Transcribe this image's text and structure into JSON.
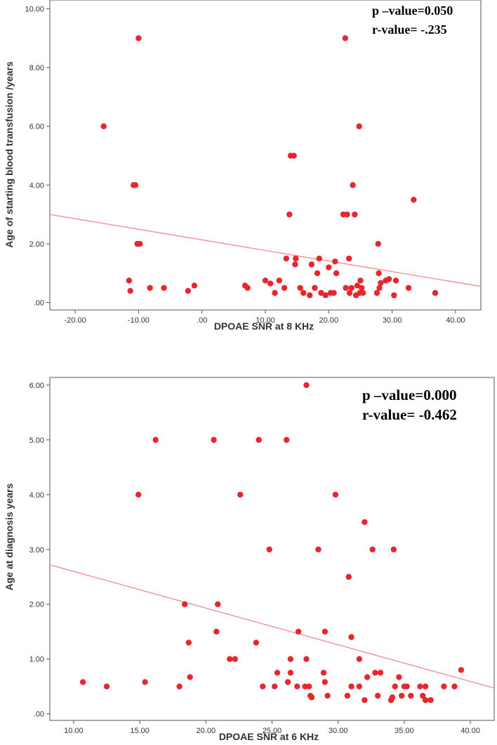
{
  "colors": {
    "point": "#e8262b",
    "fit_line": "#f08a8a",
    "axis": "#555555",
    "background": "#ffffff"
  },
  "chart_data": [
    {
      "type": "scatter",
      "title": "",
      "xlabel": "DPOAE SNR  at 8 KHz",
      "ylabel": "Age of starting blood transfusion /years",
      "xlim": [
        -24,
        44
      ],
      "ylim": [
        -0.25,
        10.3
      ],
      "xticks": [
        -20,
        -10,
        0,
        10,
        20,
        30,
        40
      ],
      "xtick_labels": [
        "-20.00",
        "-10.00",
        ".00",
        "10.00",
        "20.00",
        "30.00",
        "40.00"
      ],
      "yticks": [
        0,
        2,
        4,
        6,
        8,
        10
      ],
      "ytick_labels": [
        ".00",
        "2.00",
        "4.00",
        "6.00",
        "8.00",
        "10.00"
      ],
      "annotations": [
        "p –value=0.050",
        "r-value= -.235"
      ],
      "fit_line": {
        "x": [
          -24,
          44
        ],
        "y": [
          3.0,
          0.55
        ]
      },
      "points": [
        {
          "x": -15.5,
          "y": 6.0
        },
        {
          "x": -10.0,
          "y": 9.0
        },
        {
          "x": -10.8,
          "y": 4.0
        },
        {
          "x": -10.5,
          "y": 4.0
        },
        {
          "x": -10.2,
          "y": 2.0
        },
        {
          "x": -9.8,
          "y": 2.0
        },
        {
          "x": -11.5,
          "y": 0.75
        },
        {
          "x": -11.3,
          "y": 0.4
        },
        {
          "x": -8.2,
          "y": 0.5
        },
        {
          "x": -6.0,
          "y": 0.5
        },
        {
          "x": -2.2,
          "y": 0.4
        },
        {
          "x": -1.2,
          "y": 0.58
        },
        {
          "x": 6.8,
          "y": 0.58
        },
        {
          "x": 7.2,
          "y": 0.5
        },
        {
          "x": 10.0,
          "y": 0.75
        },
        {
          "x": 10.8,
          "y": 0.65
        },
        {
          "x": 11.5,
          "y": 0.33
        },
        {
          "x": 12.2,
          "y": 0.75
        },
        {
          "x": 13.0,
          "y": 0.5
        },
        {
          "x": 13.3,
          "y": 1.5
        },
        {
          "x": 13.8,
          "y": 3.0
        },
        {
          "x": 14.0,
          "y": 5.0
        },
        {
          "x": 14.5,
          "y": 5.0
        },
        {
          "x": 14.8,
          "y": 1.5
        },
        {
          "x": 14.7,
          "y": 1.3
        },
        {
          "x": 15.5,
          "y": 0.5
        },
        {
          "x": 16.0,
          "y": 0.33
        },
        {
          "x": 17.0,
          "y": 0.25
        },
        {
          "x": 17.3,
          "y": 1.3
        },
        {
          "x": 17.8,
          "y": 0.5
        },
        {
          "x": 18.2,
          "y": 1.0
        },
        {
          "x": 18.5,
          "y": 1.5
        },
        {
          "x": 18.8,
          "y": 0.33
        },
        {
          "x": 19.5,
          "y": 0.25
        },
        {
          "x": 20.0,
          "y": 1.2
        },
        {
          "x": 20.3,
          "y": 0.33
        },
        {
          "x": 20.8,
          "y": 0.33
        },
        {
          "x": 21.0,
          "y": 1.4
        },
        {
          "x": 21.2,
          "y": 1.0
        },
        {
          "x": 22.3,
          "y": 3.0
        },
        {
          "x": 22.6,
          "y": 9.0
        },
        {
          "x": 22.7,
          "y": 0.5
        },
        {
          "x": 22.9,
          "y": 3.0
        },
        {
          "x": 23.2,
          "y": 1.5
        },
        {
          "x": 23.3,
          "y": 0.33
        },
        {
          "x": 23.6,
          "y": 0.5
        },
        {
          "x": 23.8,
          "y": 4.0
        },
        {
          "x": 24.1,
          "y": 3.0
        },
        {
          "x": 24.3,
          "y": 0.25
        },
        {
          "x": 24.5,
          "y": 0.58
        },
        {
          "x": 24.8,
          "y": 6.0
        },
        {
          "x": 24.9,
          "y": 0.33
        },
        {
          "x": 25.2,
          "y": 0.5
        },
        {
          "x": 25.0,
          "y": 0.75
        },
        {
          "x": 25.4,
          "y": 0.33
        },
        {
          "x": 27.6,
          "y": 0.33
        },
        {
          "x": 27.8,
          "y": 2.0
        },
        {
          "x": 27.9,
          "y": 1.0
        },
        {
          "x": 28.0,
          "y": 0.5
        },
        {
          "x": 28.2,
          "y": 0.67
        },
        {
          "x": 29.0,
          "y": 0.75
        },
        {
          "x": 29.5,
          "y": 0.8
        },
        {
          "x": 30.3,
          "y": 0.25
        },
        {
          "x": 30.6,
          "y": 0.75
        },
        {
          "x": 32.6,
          "y": 0.5
        },
        {
          "x": 33.4,
          "y": 3.5
        },
        {
          "x": 36.8,
          "y": 0.33
        }
      ]
    },
    {
      "type": "scatter",
      "title": "",
      "xlabel": "DPOAE SNR  at 6 KHz",
      "ylabel": "Age at diagnosis years",
      "xlim": [
        8.2,
        41.8
      ],
      "ylim": [
        -0.12,
        6.14
      ],
      "xticks": [
        10,
        15,
        20,
        25,
        30,
        35,
        40
      ],
      "xtick_labels": [
        "10.00",
        "15.00",
        "20.00",
        "25.00",
        "30.00",
        "35.00",
        "40.00"
      ],
      "yticks": [
        0,
        1,
        2,
        3,
        4,
        5,
        6
      ],
      "ytick_labels": [
        ".00",
        "1.00",
        "2.00",
        "3.00",
        "4.00",
        "5.00",
        "6.00"
      ],
      "annotations": [
        "p –value=0.000",
        "r-value= -0.462"
      ],
      "fit_line": {
        "x": [
          8.2,
          41.8
        ],
        "y": [
          2.72,
          0.47
        ]
      },
      "points": [
        {
          "x": 10.7,
          "y": 0.58
        },
        {
          "x": 12.5,
          "y": 0.5
        },
        {
          "x": 14.9,
          "y": 4.0
        },
        {
          "x": 15.4,
          "y": 0.58
        },
        {
          "x": 16.2,
          "y": 5.0
        },
        {
          "x": 18.0,
          "y": 0.5
        },
        {
          "x": 18.4,
          "y": 2.0
        },
        {
          "x": 18.7,
          "y": 1.3
        },
        {
          "x": 18.8,
          "y": 0.67
        },
        {
          "x": 20.6,
          "y": 5.0
        },
        {
          "x": 20.8,
          "y": 1.5
        },
        {
          "x": 20.9,
          "y": 2.0
        },
        {
          "x": 21.8,
          "y": 1.0
        },
        {
          "x": 22.2,
          "y": 1.0
        },
        {
          "x": 22.6,
          "y": 4.0
        },
        {
          "x": 23.8,
          "y": 1.3
        },
        {
          "x": 24.0,
          "y": 5.0
        },
        {
          "x": 24.3,
          "y": 0.5
        },
        {
          "x": 24.8,
          "y": 3.0
        },
        {
          "x": 25.2,
          "y": 0.5
        },
        {
          "x": 25.4,
          "y": 0.75
        },
        {
          "x": 26.1,
          "y": 5.0
        },
        {
          "x": 26.2,
          "y": 0.58
        },
        {
          "x": 26.4,
          "y": 1.0
        },
        {
          "x": 26.4,
          "y": 0.75
        },
        {
          "x": 26.9,
          "y": 0.5
        },
        {
          "x": 27.0,
          "y": 1.5
        },
        {
          "x": 27.5,
          "y": 0.5
        },
        {
          "x": 27.6,
          "y": 6.0
        },
        {
          "x": 27.6,
          "y": 1.0
        },
        {
          "x": 27.8,
          "y": 0.5
        },
        {
          "x": 27.9,
          "y": 0.33
        },
        {
          "x": 28.0,
          "y": 0.3
        },
        {
          "x": 28.5,
          "y": 3.0
        },
        {
          "x": 28.9,
          "y": 0.75
        },
        {
          "x": 29.0,
          "y": 1.5
        },
        {
          "x": 29.0,
          "y": 0.58
        },
        {
          "x": 29.2,
          "y": 0.33
        },
        {
          "x": 29.8,
          "y": 4.0
        },
        {
          "x": 30.7,
          "y": 0.33
        },
        {
          "x": 30.8,
          "y": 2.5
        },
        {
          "x": 31.0,
          "y": 1.4
        },
        {
          "x": 31.0,
          "y": 0.5
        },
        {
          "x": 31.6,
          "y": 1.0
        },
        {
          "x": 31.6,
          "y": 0.5
        },
        {
          "x": 32.0,
          "y": 0.25
        },
        {
          "x": 32.0,
          "y": 3.5
        },
        {
          "x": 32.2,
          "y": 0.67
        },
        {
          "x": 32.6,
          "y": 3.0
        },
        {
          "x": 32.8,
          "y": 0.75
        },
        {
          "x": 33.0,
          "y": 0.33
        },
        {
          "x": 33.2,
          "y": 0.75
        },
        {
          "x": 34.0,
          "y": 0.25
        },
        {
          "x": 34.1,
          "y": 0.3
        },
        {
          "x": 34.2,
          "y": 3.0
        },
        {
          "x": 34.3,
          "y": 0.5
        },
        {
          "x": 34.6,
          "y": 0.67
        },
        {
          "x": 34.8,
          "y": 0.33
        },
        {
          "x": 35.0,
          "y": 0.5
        },
        {
          "x": 35.2,
          "y": 0.5
        },
        {
          "x": 35.5,
          "y": 0.33
        },
        {
          "x": 36.2,
          "y": 0.5
        },
        {
          "x": 36.4,
          "y": 0.33
        },
        {
          "x": 36.6,
          "y": 0.5
        },
        {
          "x": 36.6,
          "y": 0.25
        },
        {
          "x": 37.0,
          "y": 0.25
        },
        {
          "x": 38.0,
          "y": 0.5
        },
        {
          "x": 38.8,
          "y": 0.5
        },
        {
          "x": 39.3,
          "y": 0.8
        }
      ]
    }
  ]
}
